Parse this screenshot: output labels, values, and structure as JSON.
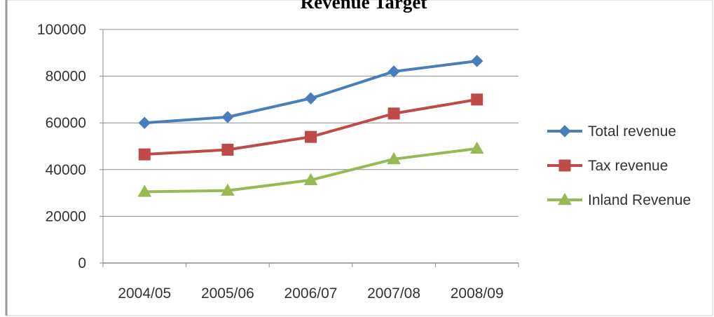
{
  "chart_data": {
    "type": "line",
    "title": "Revenue Target",
    "xlabel": "",
    "ylabel": "",
    "categories": [
      "2004/05",
      "2005/06",
      "2006/07",
      "2007/08",
      "2008/09"
    ],
    "ylim": [
      0,
      100000
    ],
    "yticks": [
      "0",
      "20000",
      "40000",
      "60000",
      "80000",
      "100000"
    ],
    "grid": true,
    "legend_position": "right",
    "series": [
      {
        "name": "Total revenue",
        "values": [
          60000,
          62500,
          70500,
          82000,
          86500
        ],
        "color": "#4a7ebb",
        "marker": "diamond"
      },
      {
        "name": "Tax revenue",
        "values": [
          46500,
          48500,
          54000,
          64000,
          70000
        ],
        "color": "#be4b48",
        "marker": "square"
      },
      {
        "name": "Inland Revenue",
        "values": [
          30500,
          31000,
          35500,
          44500,
          49000
        ],
        "color": "#98b954",
        "marker": "triangle"
      }
    ]
  }
}
